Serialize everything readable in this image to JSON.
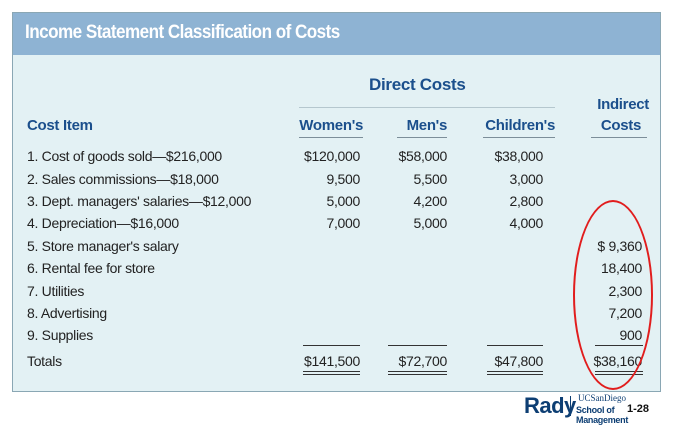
{
  "title": "Income Statement Classification of Costs",
  "headers": {
    "direct_costs": "Direct Costs",
    "cost_item": "Cost Item",
    "womens": "Women's",
    "mens": "Men's",
    "childrens": "Children's",
    "indirect_line1": "Indirect",
    "indirect_line2": "Costs"
  },
  "rows": [
    {
      "item": "1.  Cost of goods sold—$216,000",
      "womens": "$120,000",
      "mens": "$58,000",
      "childrens": "$38,000",
      "indirect": ""
    },
    {
      "item": "2.  Sales commissions—$18,000",
      "womens": "9,500",
      "mens": "5,500",
      "childrens": "3,000",
      "indirect": ""
    },
    {
      "item": "3.  Dept. managers' salaries—$12,000",
      "womens": "5,000",
      "mens": "4,200",
      "childrens": "2,800",
      "indirect": ""
    },
    {
      "item": "4.  Depreciation—$16,000",
      "womens": "7,000",
      "mens": "5,000",
      "childrens": "4,000",
      "indirect": ""
    },
    {
      "item": "5.  Store manager's salary",
      "womens": "",
      "mens": "",
      "childrens": "",
      "indirect": "$ 9,360"
    },
    {
      "item": "6.  Rental fee for store",
      "womens": "",
      "mens": "",
      "childrens": "",
      "indirect": "18,400"
    },
    {
      "item": "7.  Utilities",
      "womens": "",
      "mens": "",
      "childrens": "",
      "indirect": "2,300"
    },
    {
      "item": "8.  Advertising",
      "womens": "",
      "mens": "",
      "childrens": "",
      "indirect": "7,200"
    },
    {
      "item": "9.  Supplies",
      "womens": "",
      "mens": "",
      "childrens": "",
      "indirect": "900"
    }
  ],
  "totals": {
    "label": "Totals",
    "womens": "$141,500",
    "mens": "$72,700",
    "childrens": "$47,800",
    "indirect": "$38,160"
  },
  "footer": {
    "logo_rady": "Rady",
    "logo_ucsd": "UCSanDiego",
    "logo_school": "School of Management",
    "page_number": "1-28"
  },
  "colors": {
    "title_bar": "#8eb3d3",
    "panel_bg": "#e3f1f4",
    "header_text": "#1b4f8c",
    "annotation_oval": "#e11d1d"
  }
}
